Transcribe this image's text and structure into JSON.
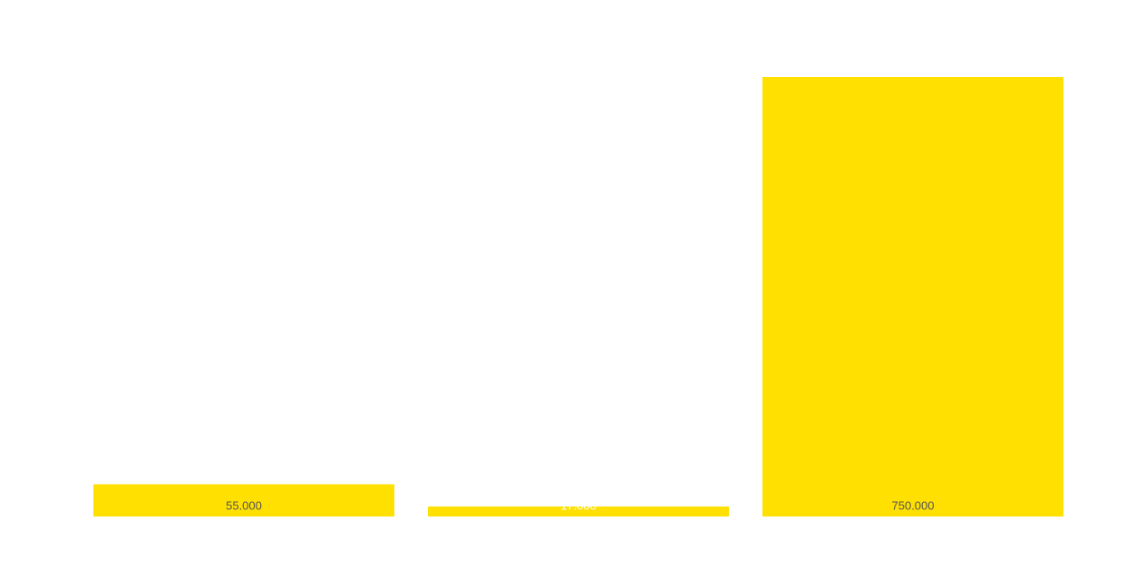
{
  "chart_data": {
    "type": "bar",
    "values": [
      55000,
      17000,
      750000
    ],
    "value_labels": [
      "55.000",
      "17.000",
      "750.000"
    ],
    "color": "#ffe000"
  }
}
